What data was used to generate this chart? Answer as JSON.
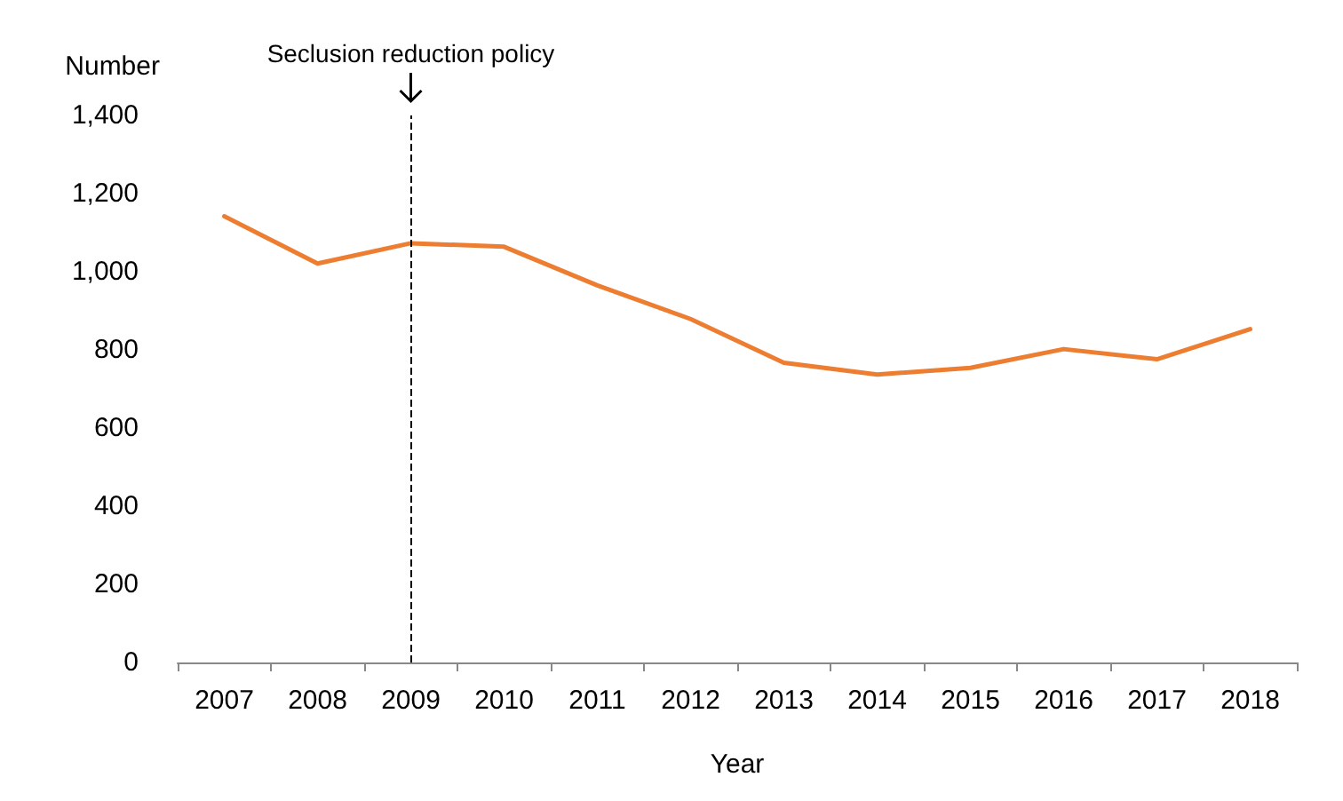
{
  "chart_data": {
    "type": "line",
    "ylabel": "Number",
    "xlabel": "Year",
    "categories": [
      "2007",
      "2008",
      "2009",
      "2010",
      "2011",
      "2012",
      "2013",
      "2014",
      "2015",
      "2016",
      "2017",
      "2018"
    ],
    "series": [
      {
        "color": "#ed7d31",
        "values": [
          1142,
          1021,
          1073,
          1064,
          965,
          879,
          767,
          737,
          754,
          802,
          776,
          853
        ]
      }
    ],
    "ylim": [
      0,
      1400
    ],
    "yticks": [
      0,
      200,
      400,
      600,
      800,
      {
        "value": 1000,
        "label": "1,000"
      },
      {
        "value": 1200,
        "label": "1,200"
      },
      {
        "value": 1400,
        "label": "1,400"
      }
    ],
    "grid": false,
    "marker": "none",
    "line_style": "solid",
    "ref_lines": [
      {
        "axis": "x",
        "value": "2009",
        "label": "Seclusion reduction policy",
        "color": "#000000",
        "line_style": "dashed"
      }
    ]
  }
}
